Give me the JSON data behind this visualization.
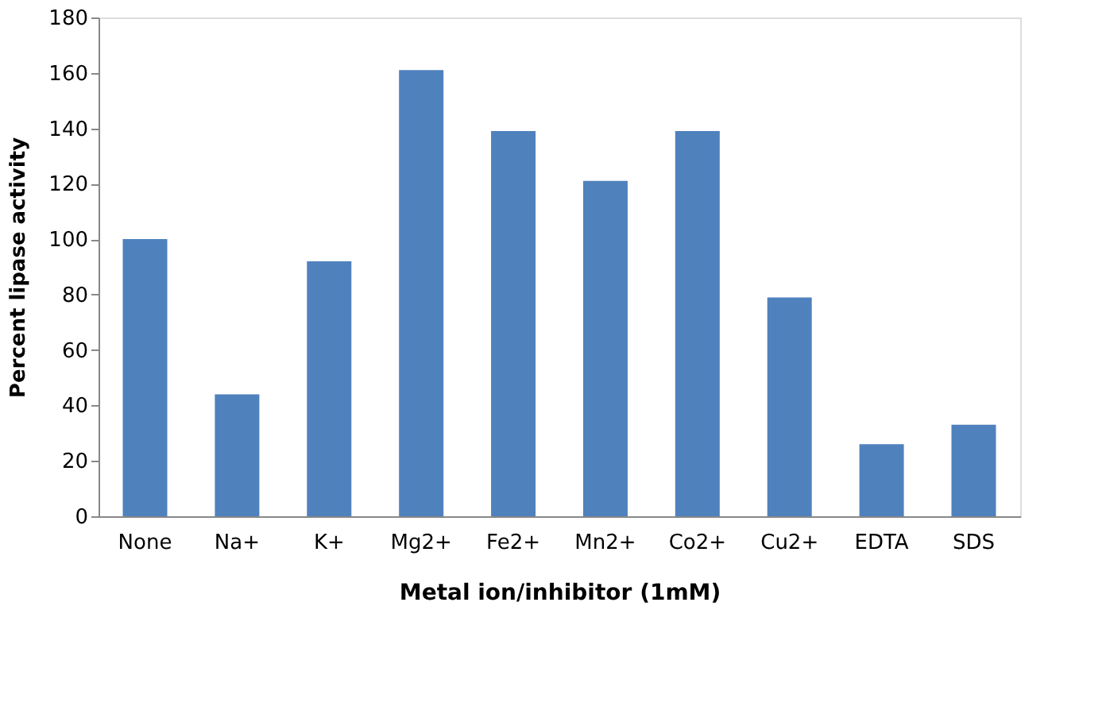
{
  "chart_data": {
    "type": "bar",
    "xlabel": "Metal ion/inhibitor (1mM)",
    "ylabel": "Percent lipase activity",
    "categories": [
      "None",
      "Na+",
      "K+",
      "Mg2+",
      "Fe2+",
      "Mn2+",
      "Co2+",
      "Cu2+",
      "EDTA",
      "SDS"
    ],
    "values": [
      100,
      44,
      92,
      161,
      139,
      121,
      139,
      79,
      26,
      33
    ],
    "color": "#4f81bd",
    "ylim": [
      0,
      180
    ],
    "yticks": [
      0,
      20,
      40,
      60,
      80,
      100,
      120,
      140,
      160,
      180
    ],
    "grid": false
  }
}
